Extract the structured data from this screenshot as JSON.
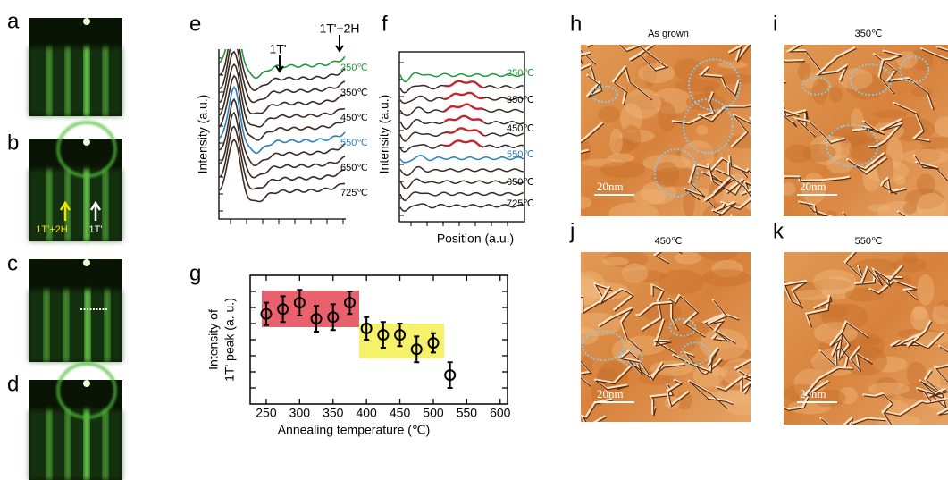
{
  "rheed": {
    "labels": [
      "a",
      "b",
      "c",
      "d"
    ],
    "arrow_labels": [
      "1T'+2H",
      "1T'"
    ]
  },
  "panel_e": {
    "label": "e",
    "ylabel": "Intensity (a.u.)",
    "peaks": [
      "1T'",
      "1T'+2H"
    ],
    "curve_labels": [
      "250℃",
      "350℃",
      "450℃",
      "550℃",
      "650℃",
      "725℃"
    ]
  },
  "panel_f": {
    "label": "f",
    "ylabel": "Intensity (a.u.)",
    "xlabel": "Position (a.u.)",
    "curve_labels": [
      "250℃",
      "350℃",
      "450℃",
      "550℃",
      "650℃",
      "725℃"
    ]
  },
  "chart_data": {
    "type": "scatter",
    "label": "g",
    "xlabel": "Annealing temperature (℃)",
    "ylabel": [
      "Intensity of",
      "1T' peak (a. u.)"
    ],
    "x": [
      250,
      275,
      300,
      325,
      350,
      375,
      400,
      425,
      450,
      475,
      500,
      525
    ],
    "values": [
      5.6,
      5.9,
      6.3,
      5.3,
      5.4,
      6.3,
      4.7,
      4.3,
      4.3,
      3.4,
      3.8,
      1.8
    ],
    "errors": [
      0.7,
      0.8,
      0.8,
      0.8,
      0.8,
      0.7,
      0.7,
      0.8,
      0.7,
      0.8,
      0.6,
      0.8
    ],
    "color": "#000000",
    "xlim": [
      226,
      611
    ],
    "ylim": [
      0,
      8
    ],
    "xticks": [
      250,
      300,
      350,
      400,
      450,
      500,
      550,
      600
    ]
  },
  "stm": {
    "labels": [
      "h",
      "i",
      "j",
      "k"
    ],
    "titles": [
      "As grown",
      "350℃",
      "450℃",
      "550℃"
    ],
    "scale_bar": "20nm"
  }
}
